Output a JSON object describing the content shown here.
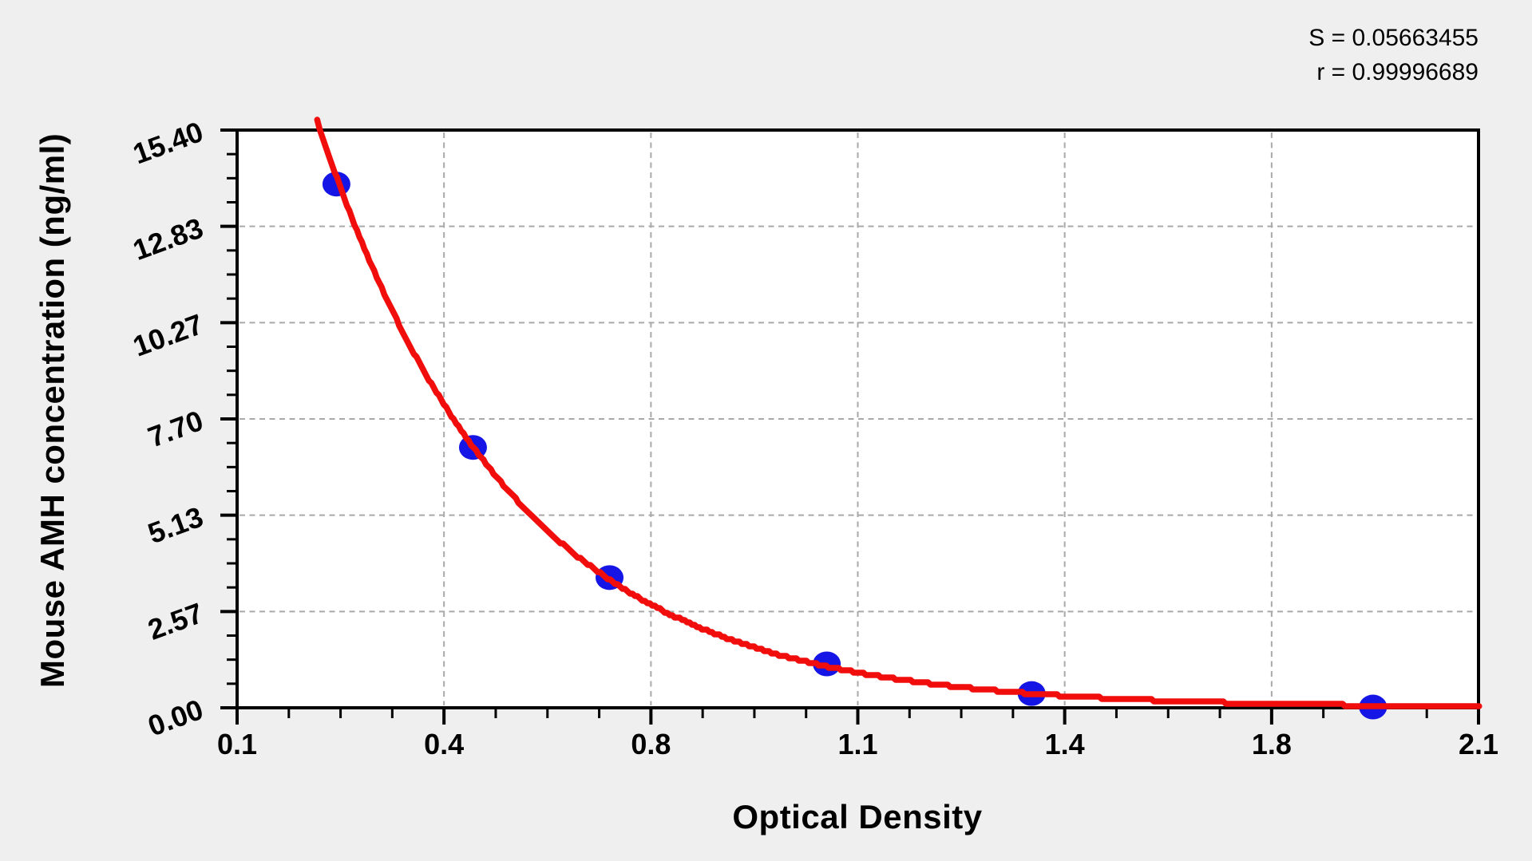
{
  "page": {
    "background_color": "#efefef",
    "plot_background_color": "#ffffff",
    "axis_color": "#000000",
    "gridline_color": "#a9a9a9"
  },
  "stats": {
    "s_line": "S = 0.05663455",
    "r_line": "r = 0.99996689"
  },
  "chart_data": {
    "type": "scatter",
    "title": "",
    "xlabel": "Optical Density",
    "ylabel": "Mouse AMH concentration (ng/ml)",
    "xlim": [
      0.1,
      2.1
    ],
    "ylim": [
      0,
      15.4
    ],
    "x_ticks": {
      "values": [
        0.1,
        0.4333,
        0.7667,
        1.1,
        1.4333,
        1.7667,
        2.1
      ],
      "labels": [
        "0.1",
        "0.4",
        "0.8",
        "1.1",
        "1.4",
        "1.8",
        "2.1"
      ]
    },
    "y_ticks": {
      "values": [
        0,
        2.5667,
        5.1333,
        7.7,
        10.2667,
        12.8333,
        15.4
      ],
      "labels": [
        "0.00",
        "2.57",
        "5.13",
        "7.70",
        "10.27",
        "12.83",
        "15.40"
      ]
    },
    "minor_ticks_per_major_interval": 3,
    "grid": "dashed gray lines at interior major ticks, both axes",
    "legend": "none",
    "points": [
      {
        "x": 0.26,
        "y": 13.96
      },
      {
        "x": 0.48,
        "y": 6.94
      },
      {
        "x": 0.7,
        "y": 3.47
      },
      {
        "x": 1.05,
        "y": 1.17
      },
      {
        "x": 1.38,
        "y": 0.38
      },
      {
        "x": 1.93,
        "y": 0.02
      }
    ],
    "fit_curve": {
      "model": "y = A * exp(-k * x)",
      "A": 32.8,
      "k": 3.231,
      "x_start": 0.229,
      "x_end": 2.102
    },
    "statistics": {
      "S": "0.05663455",
      "r": "0.99996689"
    },
    "colors": {
      "points": "#1515e6",
      "curve": "#f20d0d"
    }
  }
}
